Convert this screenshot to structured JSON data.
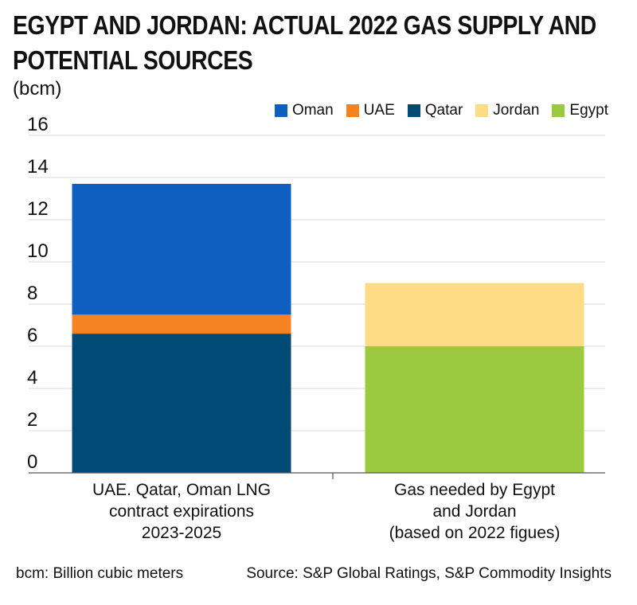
{
  "header": {
    "title_line1": "EGYPT AND JORDAN: ACTUAL 2022 GAS SUPPLY AND",
    "title_line2": "POTENTIAL SOURCES",
    "unit": "(bcm)"
  },
  "legend": [
    {
      "label": "Oman",
      "color": "#0f5fc0"
    },
    {
      "label": "UAE",
      "color": "#f58220"
    },
    {
      "label": "Qatar",
      "color": "#004a75"
    },
    {
      "label": "Jordan",
      "color": "#fddc85"
    },
    {
      "label": "Egypt",
      "color": "#9bc93f"
    }
  ],
  "chart_data": {
    "type": "bar",
    "stacked": true,
    "title": "EGYPT AND JORDAN: ACTUAL 2022 GAS SUPPLY AND POTENTIAL SOURCES",
    "ylabel": "(bcm)",
    "ylim": [
      0,
      16
    ],
    "yticks": [
      0,
      2,
      4,
      6,
      8,
      10,
      12,
      14,
      16
    ],
    "categories": [
      [
        "UAE. Qatar, Oman LNG",
        "contract expirations",
        "2023-2025"
      ],
      [
        "Gas needed by Egypt",
        "and Jordan",
        "(based on 2022 figues)"
      ]
    ],
    "series": [
      {
        "name": "Qatar",
        "color": "#004a75",
        "values": [
          6.6,
          0
        ]
      },
      {
        "name": "UAE",
        "color": "#f58220",
        "values": [
          0.9,
          0
        ]
      },
      {
        "name": "Oman",
        "color": "#0f5fc0",
        "values": [
          6.2,
          0
        ]
      },
      {
        "name": "Egypt",
        "color": "#9bc93f",
        "values": [
          0,
          6.0
        ]
      },
      {
        "name": "Jordan",
        "color": "#fddc85",
        "values": [
          0,
          3.0
        ]
      }
    ],
    "grid": true,
    "legend_position": "top-right"
  },
  "footer": {
    "note": "bcm: Billion cubic meters",
    "source": "Source: S&P Global Ratings, S&P Commodity Insights"
  }
}
